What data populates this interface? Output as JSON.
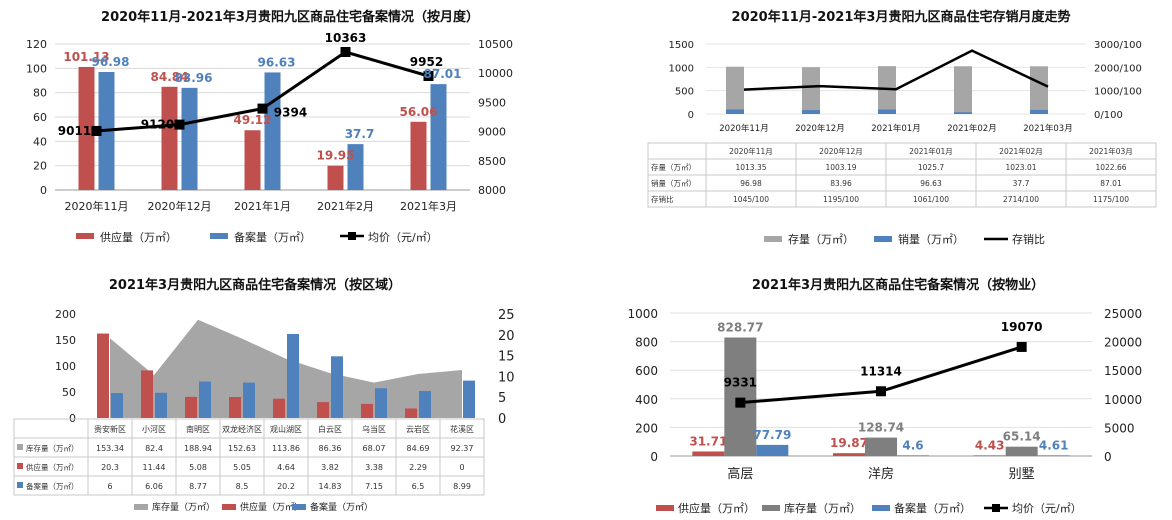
{
  "colors": {
    "supply": "#c0504d",
    "filed": "#4f81bd",
    "price": "#000000",
    "stock_q1": "#a6a6a6",
    "sales_q1": "#4f81bd",
    "stock_q4": "#7f7f7f"
  },
  "chart_data": [
    {
      "type": "bar",
      "title": "2020年11月-2021年3月贵阳九区商品住宅备案情况（按月度）",
      "categories": [
        "2020年11月",
        "2020年12月",
        "2021年1月",
        "2021年2月",
        "2021年3月"
      ],
      "series": [
        {
          "name": "供应量（万㎡）",
          "type": "bar",
          "axis": "left",
          "values": [
            101.13,
            84.84,
            49.12,
            19.95,
            56.06
          ],
          "labels": [
            "101.13",
            "84.84",
            "49.12",
            "19.95",
            "56.06"
          ]
        },
        {
          "name": "备案量（万㎡）",
          "type": "bar",
          "axis": "left",
          "values": [
            96.98,
            83.96,
            96.63,
            37.7,
            87.01
          ],
          "labels": [
            "96.98",
            "83.96",
            "96.63",
            "37.7",
            "87.01"
          ]
        },
        {
          "name": "均价（元/㎡）",
          "type": "line",
          "axis": "right",
          "values": [
            9011,
            9120,
            9394,
            10363,
            9952
          ],
          "labels": [
            "9011",
            "9120",
            "9394",
            "10363",
            "9952"
          ]
        }
      ],
      "y_left": {
        "range": [
          0,
          120
        ],
        "ticks": [
          "0",
          "20",
          "40",
          "60",
          "80",
          "100",
          "120"
        ]
      },
      "y_right": {
        "range": [
          8000,
          10500
        ],
        "ticks": [
          "8000",
          "8500",
          "9000",
          "9500",
          "10000",
          "10500"
        ]
      },
      "legend": "bottom"
    },
    {
      "type": "bar",
      "title": "2020年11月-2021年3月贵阳九区商品住宅存销月度走势",
      "categories": [
        "2020年11月",
        "2020年12月",
        "2021年01月",
        "2021年02月",
        "2021年03月"
      ],
      "series": [
        {
          "name": "存量（万㎡）",
          "type": "bar",
          "axis": "left",
          "values": [
            1013.35,
            1003.19,
            1025.7,
            1023.01,
            1022.66
          ]
        },
        {
          "name": "销量（万㎡）",
          "type": "bar",
          "axis": "left",
          "values": [
            96.98,
            83.96,
            96.63,
            37.7,
            87.01
          ]
        },
        {
          "name": "存销比",
          "type": "line",
          "axis": "right",
          "values": [
            1045,
            1195,
            1061,
            2714,
            1175
          ]
        }
      ],
      "y_left": {
        "range": [
          0,
          1500
        ],
        "ticks": [
          "0",
          "500",
          "1000",
          "1500"
        ]
      },
      "y_right": {
        "range": [
          0,
          3000
        ],
        "ticks": [
          "0/100",
          "1000/100",
          "2000/100",
          "3000/100"
        ]
      },
      "table": {
        "header": [
          "2020年11月",
          "2020年12月",
          "2021年01月",
          "2021年02月",
          "2021年03月"
        ],
        "rows": [
          {
            "label": "存量（万㎡）",
            "cells": [
              "1013.35",
              "1003.19",
              "1025.7",
              "1023.01",
              "1022.66"
            ]
          },
          {
            "label": "销量（万㎡）",
            "cells": [
              "96.98",
              "83.96",
              "96.63",
              "37.7",
              "87.01"
            ]
          },
          {
            "label": "存销比",
            "cells": [
              "1045/100",
              "1195/100",
              "1061/100",
              "2714/100",
              "1175/100"
            ]
          }
        ]
      },
      "legend": "bottom"
    },
    {
      "type": "bar",
      "title": "2021年3月贵阳九区商品住宅备案情况（按区域）",
      "categories": [
        "贵安新区",
        "小河区",
        "南明区",
        "双龙经济区",
        "观山湖区",
        "白云区",
        "乌当区",
        "云岩区",
        "花溪区"
      ],
      "series": [
        {
          "name": "库存量（万㎡）",
          "type": "area",
          "axis": "left",
          "values": [
            153.34,
            82.4,
            188.94,
            152.63,
            113.86,
            86.36,
            68.07,
            84.69,
            92.37
          ]
        },
        {
          "name": "供应量（万㎡）",
          "type": "bar",
          "axis": "right",
          "values": [
            20.3,
            11.44,
            5.08,
            5.05,
            4.64,
            3.82,
            3.38,
            2.29,
            0
          ]
        },
        {
          "name": "备案量（万㎡）",
          "type": "bar",
          "axis": "right",
          "values": [
            6,
            6.06,
            8.77,
            8.5,
            20.2,
            14.83,
            7.15,
            6.5,
            8.99
          ]
        }
      ],
      "y_left": {
        "range": [
          0,
          200
        ],
        "ticks": [
          "0",
          "50",
          "100",
          "150",
          "200"
        ]
      },
      "y_right": {
        "range": [
          0,
          25
        ],
        "ticks": [
          "0",
          "5",
          "10",
          "15",
          "20",
          "25"
        ]
      },
      "table": {
        "rows": [
          {
            "label": "库存量（万㎡）",
            "cells": [
              "153.34",
              "82.4",
              "188.94",
              "152.63",
              "113.86",
              "86.36",
              "68.07",
              "84.69",
              "92.37"
            ]
          },
          {
            "label": "供应量（万㎡）",
            "cells": [
              "20.3",
              "11.44",
              "5.08",
              "5.05",
              "4.64",
              "3.82",
              "3.38",
              "2.29",
              "0"
            ]
          },
          {
            "label": "备案量（万㎡）",
            "cells": [
              "6",
              "6.06",
              "8.77",
              "8.5",
              "20.2",
              "14.83",
              "7.15",
              "6.5",
              "8.99"
            ]
          }
        ]
      },
      "legend": "bottom"
    },
    {
      "type": "bar",
      "title": "2021年3月贵阳九区商品住宅备案情况（按物业）",
      "categories": [
        "高层",
        "洋房",
        "别墅"
      ],
      "series": [
        {
          "name": "供应量（万㎡）",
          "type": "bar",
          "axis": "left",
          "values": [
            31.71,
            19.87,
            4.43
          ],
          "labels": [
            "31.71",
            "19.87",
            "4.43"
          ]
        },
        {
          "name": "库存量（万㎡）",
          "type": "bar",
          "axis": "left",
          "values": [
            828.77,
            128.74,
            65.14
          ],
          "labels": [
            "828.77",
            "128.74",
            "65.14"
          ]
        },
        {
          "name": "备案量（万㎡）",
          "type": "bar",
          "axis": "left",
          "values": [
            77.79,
            4.6,
            4.61
          ],
          "labels": [
            "77.79",
            "4.6",
            "4.61"
          ]
        },
        {
          "name": "均价（元/㎡）",
          "type": "line",
          "axis": "right",
          "values": [
            9331,
            11314,
            19070
          ],
          "labels": [
            "9331",
            "11314",
            "19070"
          ]
        }
      ],
      "y_left": {
        "range": [
          0,
          1000
        ],
        "ticks": [
          "0",
          "200",
          "400",
          "600",
          "800",
          "1000"
        ]
      },
      "y_right": {
        "range": [
          0,
          25000
        ],
        "ticks": [
          "0",
          "5000",
          "10000",
          "15000",
          "20000",
          "25000"
        ]
      },
      "legend": "bottom"
    }
  ]
}
